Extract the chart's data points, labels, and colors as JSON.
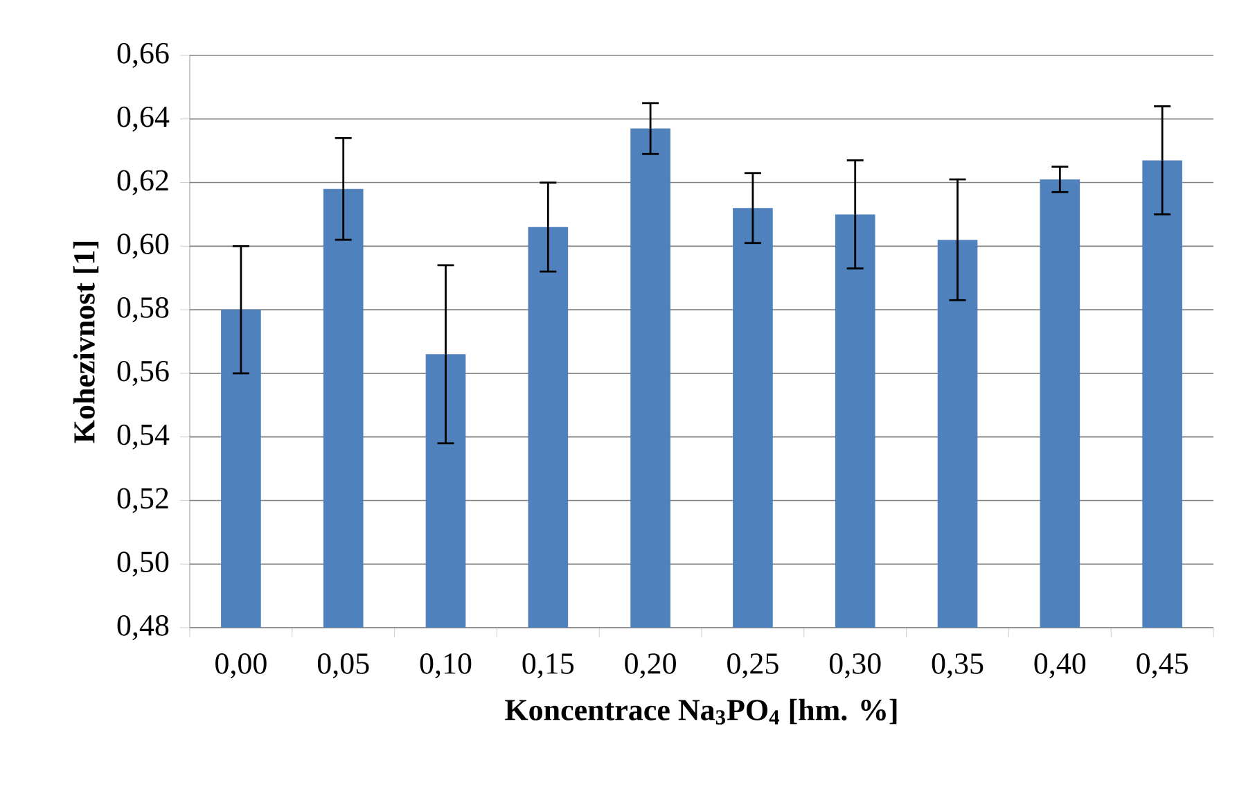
{
  "chart_data": {
    "type": "bar",
    "xlabel": "Koncentrace Na$_{3}$PO$_{4}$ [hm. %]",
    "ylabel": "Kohezivnost [1]",
    "categories": [
      "0,00",
      "0,05",
      "0,10",
      "0,15",
      "0,20",
      "0,25",
      "0,30",
      "0,35",
      "0,40",
      "0,45"
    ],
    "values": [
      0.58,
      0.618,
      0.566,
      0.606,
      0.637,
      0.612,
      0.61,
      0.602,
      0.621,
      0.627
    ],
    "errors": [
      0.02,
      0.016,
      0.028,
      0.014,
      0.008,
      0.011,
      0.017,
      0.019,
      0.004,
      0.017
    ],
    "color": "#4f81bd",
    "ylim": [
      0.48,
      0.66
    ],
    "yticks": [
      {
        "value": 0.48,
        "label": "0,48"
      },
      {
        "value": 0.5,
        "label": "0,50"
      },
      {
        "value": 0.52,
        "label": "0,52"
      },
      {
        "value": 0.54,
        "label": "0,54"
      },
      {
        "value": 0.56,
        "label": "0,56"
      },
      {
        "value": 0.58,
        "label": "0,58"
      },
      {
        "value": 0.6,
        "label": "0,60"
      },
      {
        "value": 0.62,
        "label": "0,62"
      },
      {
        "value": 0.64,
        "label": "0,64"
      },
      {
        "value": 0.66,
        "label": "0,66"
      }
    ],
    "grid": "y"
  }
}
